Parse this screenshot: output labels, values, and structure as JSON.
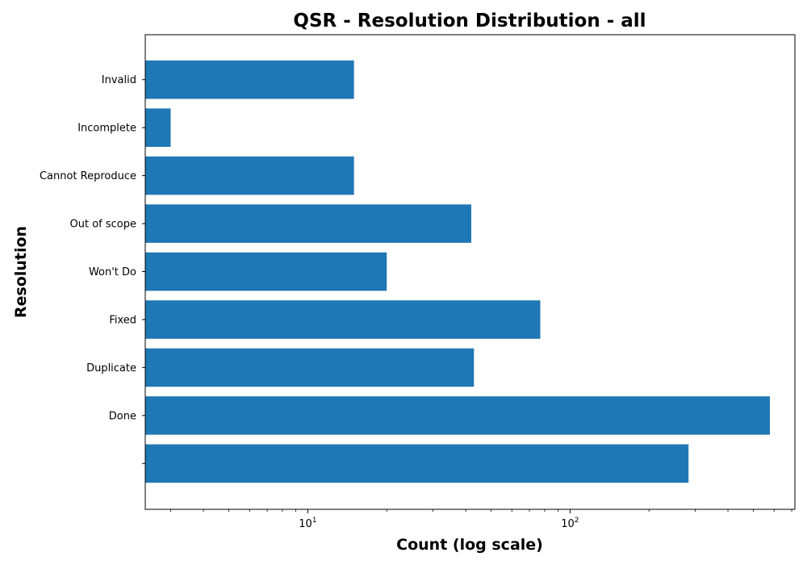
{
  "chart_data": {
    "type": "bar",
    "orientation": "horizontal",
    "title": "QSR - Resolution Distribution - all",
    "xlabel": "Count (log scale)",
    "ylabel": "Resolution",
    "x_scale": "log",
    "xlim": [
      2.4,
      720
    ],
    "x_major_ticks": [
      {
        "value": 10,
        "base": "10",
        "exp": "1"
      },
      {
        "value": 100,
        "base": "10",
        "exp": "2"
      }
    ],
    "categories": [
      "",
      "Done",
      "Duplicate",
      "Fixed",
      "Won't Do",
      "Out of scope",
      "Cannot Reproduce",
      "Incomplete",
      "Invalid"
    ],
    "values": [
      283,
      578,
      43,
      77,
      20,
      42,
      15,
      3,
      15
    ],
    "bar_color": "#1f77b4",
    "grid": false,
    "legend": "none"
  }
}
